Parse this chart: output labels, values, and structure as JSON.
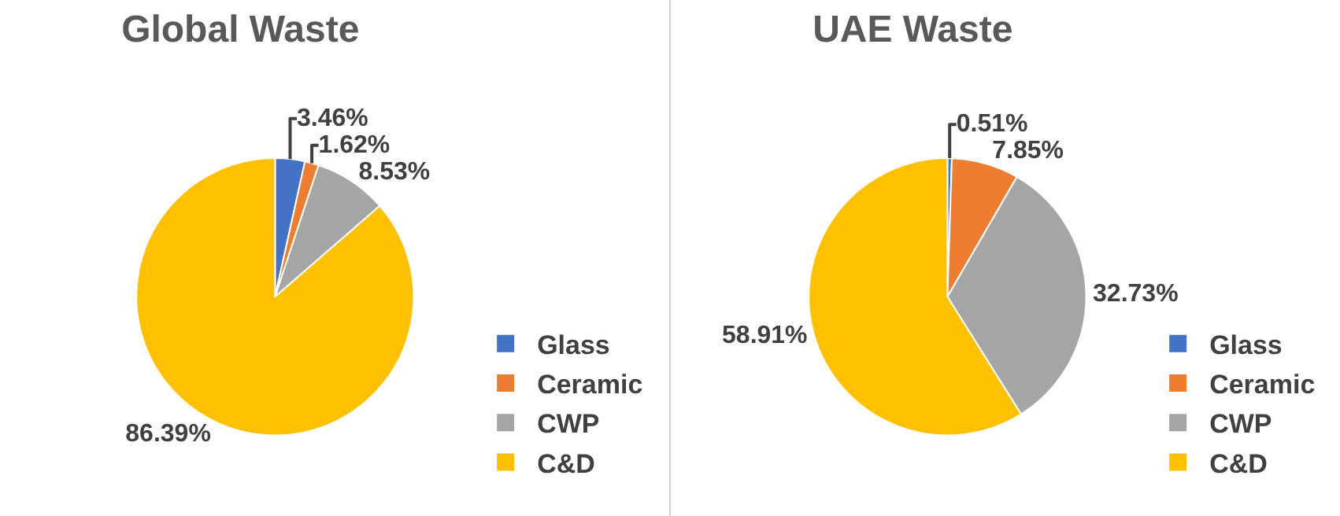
{
  "chart_data": [
    {
      "type": "pie",
      "title": "Global Waste",
      "categories": [
        "Glass",
        "Ceramic",
        "CWP",
        "C&D"
      ],
      "values": [
        3.46,
        1.62,
        8.53,
        86.39
      ],
      "colors": [
        "#4472c4",
        "#ed7d31",
        "#a5a5a5",
        "#ffc000"
      ],
      "value_labels": [
        "3.46%",
        "1.62%",
        "8.53%",
        "86.39%"
      ],
      "legend": "bottom right"
    },
    {
      "type": "pie",
      "title": "UAE Waste",
      "categories": [
        "Glass",
        "Ceramic",
        "CWP",
        "C&D"
      ],
      "values": [
        0.51,
        7.85,
        32.73,
        58.91
      ],
      "colors": [
        "#4472c4",
        "#ed7d31",
        "#a5a5a5",
        "#ffc000"
      ],
      "value_labels": [
        "0.51%",
        "7.85%",
        "32.73%",
        "58.91%"
      ],
      "legend": "bottom right"
    }
  ]
}
